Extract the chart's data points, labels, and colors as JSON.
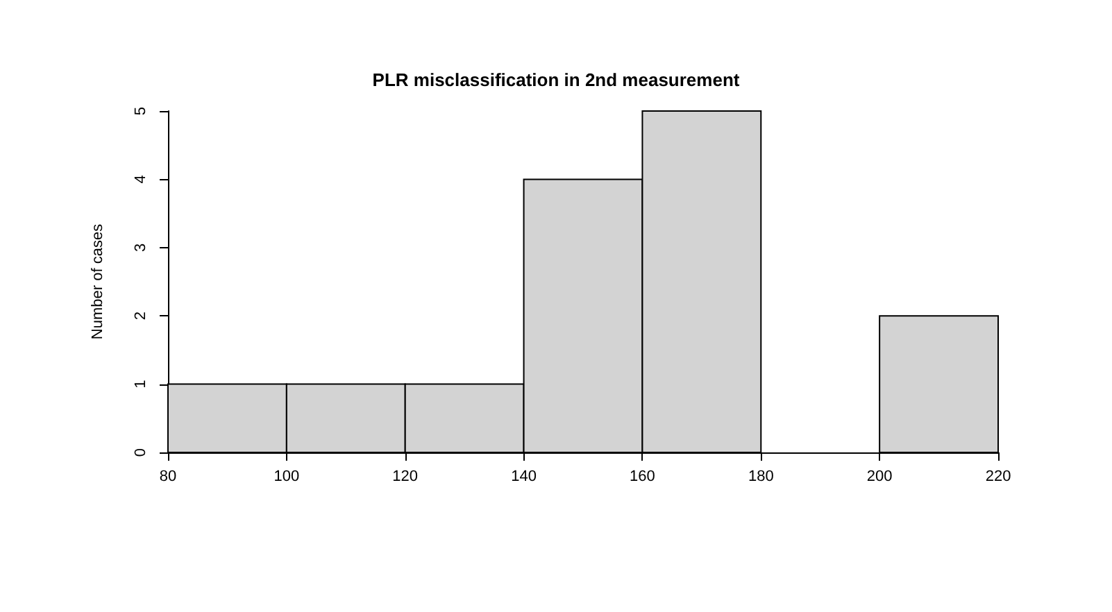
{
  "chart_data": {
    "type": "histogram",
    "title": "PLR misclassification in 2nd measurement",
    "ylabel": "Number of cases",
    "bins": [
      80,
      100,
      120,
      140,
      160,
      180,
      200,
      220
    ],
    "values": [
      1,
      1,
      1,
      4,
      5,
      0,
      2
    ],
    "color": "#d3d3d3",
    "xlim": [
      80,
      220
    ],
    "xticks": [
      80,
      100,
      120,
      140,
      160,
      180,
      200,
      220
    ],
    "ylim": [
      0,
      5
    ],
    "yticks": [
      0,
      1,
      2,
      3,
      4,
      5
    ],
    "grid": false
  }
}
